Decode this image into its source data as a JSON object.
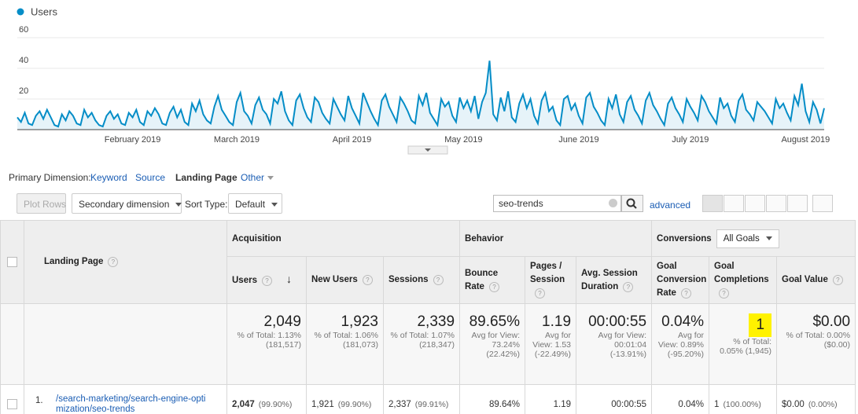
{
  "chart_data": {
    "type": "line",
    "series": [
      {
        "name": "Users",
        "color": "#058dc7",
        "values": [
          8,
          5,
          11,
          4,
          3,
          9,
          12,
          7,
          13,
          8,
          3,
          2,
          10,
          6,
          12,
          9,
          4,
          3,
          13,
          8,
          11,
          6,
          3,
          2,
          9,
          12,
          7,
          10,
          4,
          3,
          11,
          8,
          13,
          5,
          3,
          12,
          9,
          14,
          10,
          4,
          3,
          11,
          15,
          8,
          13,
          5,
          3,
          17,
          12,
          19,
          10,
          6,
          4,
          15,
          22,
          13,
          9,
          5,
          3,
          18,
          24,
          12,
          9,
          4,
          16,
          21,
          13,
          10,
          4,
          20,
          17,
          25,
          12,
          6,
          3,
          19,
          23,
          14,
          8,
          5,
          21,
          18,
          11,
          7,
          4,
          20,
          15,
          10,
          6,
          22,
          14,
          9,
          4,
          24,
          18,
          12,
          7,
          3,
          19,
          23,
          15,
          10,
          5,
          21,
          17,
          12,
          6,
          4,
          22,
          16,
          24,
          11,
          7,
          3,
          20,
          15,
          18,
          9,
          5,
          21,
          14,
          19,
          12,
          22,
          7,
          18,
          24,
          45,
          10,
          6,
          21,
          12,
          25,
          8,
          5,
          17,
          23,
          14,
          20,
          9,
          4,
          19,
          24,
          12,
          15,
          6,
          3,
          20,
          22,
          13,
          17,
          9,
          4,
          21,
          24,
          15,
          11,
          6,
          3,
          20,
          14,
          23,
          10,
          5,
          18,
          22,
          13,
          9,
          4,
          19,
          24,
          16,
          12,
          7,
          3,
          17,
          21,
          14,
          10,
          5,
          20,
          15,
          11,
          6,
          22,
          18,
          12,
          8,
          4,
          21,
          14,
          17,
          9,
          5,
          19,
          23,
          13,
          10,
          6,
          18,
          15,
          12,
          8,
          4,
          20,
          14,
          17,
          11,
          6,
          22,
          16,
          30,
          12,
          5,
          18,
          13,
          4,
          14
        ]
      }
    ],
    "categories": [
      null,
      null,
      null,
      null,
      null,
      null,
      null,
      null,
      null,
      null,
      null,
      null,
      null,
      null,
      null,
      null,
      null,
      null,
      null,
      null,
      null,
      null,
      null,
      null,
      null,
      null,
      null,
      null,
      null,
      null,
      null,
      "February 2019",
      null,
      null,
      null,
      null,
      null,
      null,
      null,
      null,
      null,
      null,
      null,
      null,
      null,
      null,
      null,
      null,
      null,
      null,
      null,
      null,
      null,
      null,
      null,
      null,
      null,
      null,
      null,
      "March 2019",
      null,
      null,
      null,
      null,
      null,
      null,
      null,
      null,
      null,
      null,
      null,
      null,
      null,
      null,
      null,
      null,
      null,
      null,
      null,
      null,
      null,
      null,
      null,
      null,
      null,
      null,
      null,
      null,
      null,
      null,
      "April 2019",
      null,
      null,
      null,
      null,
      null,
      null,
      null,
      null,
      null,
      null,
      null,
      null,
      null,
      null,
      null,
      null,
      null,
      null,
      null,
      null,
      null,
      null,
      null,
      null,
      null,
      null,
      null,
      null,
      null,
      "May 2019",
      null,
      null,
      null,
      null,
      null,
      null,
      null,
      null,
      null,
      null,
      null,
      null,
      null,
      null,
      null,
      null,
      null,
      null,
      null,
      null,
      null,
      null,
      null,
      null,
      null,
      null,
      null,
      null,
      null,
      null,
      "June 2019",
      null,
      null,
      null,
      null,
      null,
      null,
      null,
      null,
      null,
      null,
      null,
      null,
      null,
      null,
      null,
      null,
      null,
      null,
      null,
      null,
      null,
      null,
      null,
      null,
      null,
      null,
      null,
      null,
      null,
      "July 2019",
      null,
      null,
      null,
      null,
      null,
      null,
      null,
      null,
      null,
      null,
      null,
      null,
      null,
      null,
      null,
      null,
      null,
      null,
      null,
      null,
      null,
      null,
      null,
      null,
      null,
      null,
      null,
      null,
      null,
      null,
      "August 2019",
      null,
      null,
      null,
      null,
      null
    ],
    "ylim": [
      0,
      60
    ],
    "yticks": [
      20,
      40,
      60
    ],
    "grid": true,
    "legend": "top-left"
  },
  "controls": {
    "primary_label": "Primary Dimension:",
    "dimensions": [
      "Keyword",
      "Source",
      "Landing Page",
      "Other"
    ],
    "active_dimension": 2,
    "plot_rows": "Plot Rows",
    "secondary": "Secondary dimension",
    "sort_label": "Sort Type:",
    "sort_value": "Default",
    "search": "seo-trends",
    "advanced": "advanced"
  },
  "table": {
    "header": {
      "dimension": "Landing Page",
      "groups": [
        "Acquisition",
        "Behavior",
        "Conversions"
      ],
      "goal_select": "All Goals",
      "columns": [
        "Users",
        "New Users",
        "Sessions",
        "Bounce Rate",
        "Pages / Session",
        "Avg. Session Duration",
        "Goal Conversion Rate",
        "Goal Completions",
        "Goal Value"
      ]
    },
    "totals": [
      {
        "value": "2,049",
        "note": "% of Total: 1.13% (181,517)"
      },
      {
        "value": "1,923",
        "note": "% of Total: 1.06% (181,073)"
      },
      {
        "value": "2,339",
        "note": "% of Total: 1.07% (218,347)"
      },
      {
        "value": "89.65%",
        "note": "Avg for View: 73.24% (22.42%)"
      },
      {
        "value": "1.19",
        "note": "Avg for View: 1.53 (-22.49%)"
      },
      {
        "value": "00:00:55",
        "note": "Avg for View: 00:01:04 (-13.91%)"
      },
      {
        "value": "0.04%",
        "note": "Avg for View: 0.89% (-95.20%)"
      },
      {
        "value": "1",
        "note": "% of Total: 0.05% (1,945)"
      },
      {
        "value": "$0.00",
        "note": "% of Total: 0.00% ($0.00)"
      }
    ],
    "rows": [
      {
        "index": "1.",
        "page": "/search-marketing/search-engine-optimization/seo-trends",
        "cells": [
          {
            "value": "2,047",
            "share": "(99.90%)"
          },
          {
            "value": "1,921",
            "share": "(99.90%)"
          },
          {
            "value": "2,337",
            "share": "(99.91%)"
          },
          {
            "value": "89.64%"
          },
          {
            "value": "1.19"
          },
          {
            "value": "00:00:55"
          },
          {
            "value": "0.04%"
          },
          {
            "value": "1",
            "share": "(100.00%)"
          },
          {
            "value": "$0.00",
            "share": "(0.00%)"
          }
        ]
      }
    ]
  }
}
